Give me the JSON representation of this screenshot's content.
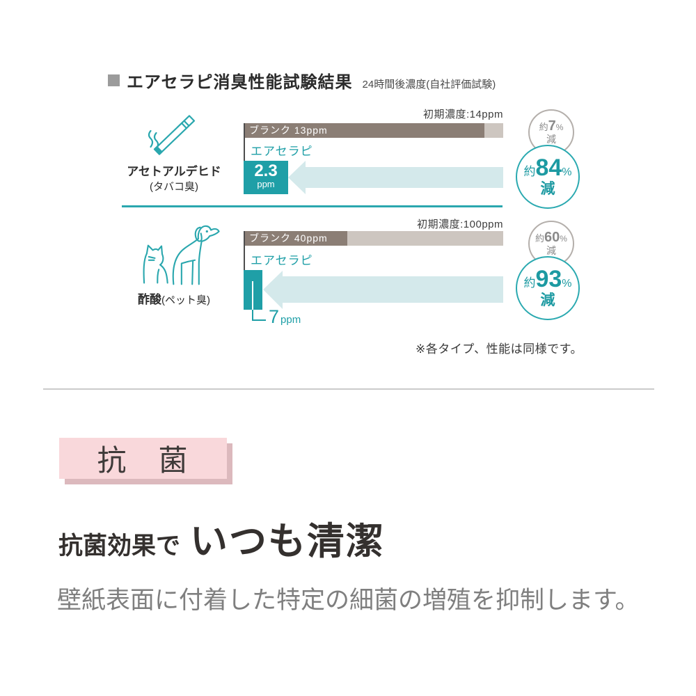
{
  "header": {
    "title": "エアセラピ消臭性能試験結果",
    "subtitle": "24時間後濃度(自社評価試験)"
  },
  "rows": [
    {
      "icon": "cigarette-icon",
      "substance": "アセトアルデヒド",
      "substance_note": "(タバコ臭)",
      "initial_label": "初期濃度:14ppm",
      "blank_label": "ブランク 13ppm",
      "product_label": "エアセラピ",
      "result_value": "2.3",
      "result_unit": "ppm",
      "blank_circle": {
        "prefix": "約",
        "value": "7",
        "percent": "%",
        "suffix": "減"
      },
      "product_circle": {
        "prefix": "約",
        "value": "84",
        "percent": "%",
        "suffix": "減"
      }
    },
    {
      "icon": "cat-dog-icon",
      "substance": "酢酸",
      "substance_note": "(ペット臭)",
      "initial_label": "初期濃度:100ppm",
      "blank_label": "ブランク 40ppm",
      "product_label": "エアセラピ",
      "callout_value": "7",
      "callout_unit": "ppm",
      "blank_circle": {
        "prefix": "約",
        "value": "60",
        "percent": "%",
        "suffix": "減"
      },
      "product_circle": {
        "prefix": "約",
        "value": "93",
        "percent": "%",
        "suffix": "減"
      }
    }
  ],
  "note": "※各タイプ、性能は同様です。",
  "antibacterial": {
    "badge": "抗　菌",
    "headline_lead": "抗菌効果で",
    "headline_main": "いつも清潔",
    "body": "壁紙表面に付着した特定の細菌の増殖を抑制します。"
  },
  "colors": {
    "teal": "#1f9fa7",
    "teal_light_arrow": "#d4e9eb",
    "bar_dark": "#8b7e75",
    "bar_light": "#cdc6c0",
    "gray_circle": "#8a8a8a",
    "pink_badge": "#f9d8db",
    "pink_shadow": "#dcb9bd"
  },
  "chart_data": {
    "type": "bar",
    "title": "エアセラピ消臭性能試験結果",
    "subtitle": "24時間後濃度(自社評価試験)",
    "unit": "ppm",
    "groups": [
      {
        "substance": "アセトアルデヒド(タバコ臭)",
        "initial_ppm": 14,
        "blank_ppm": 13,
        "aircerapi_ppm": 2.3,
        "blank_reduction_pct": 7,
        "aircerapi_reduction_pct": 84
      },
      {
        "substance": "酢酸(ペット臭)",
        "initial_ppm": 100,
        "blank_ppm": 40,
        "aircerapi_ppm": 7,
        "blank_reduction_pct": 60,
        "aircerapi_reduction_pct": 93
      }
    ],
    "note": "※各タイプ、性能は同様です。"
  }
}
